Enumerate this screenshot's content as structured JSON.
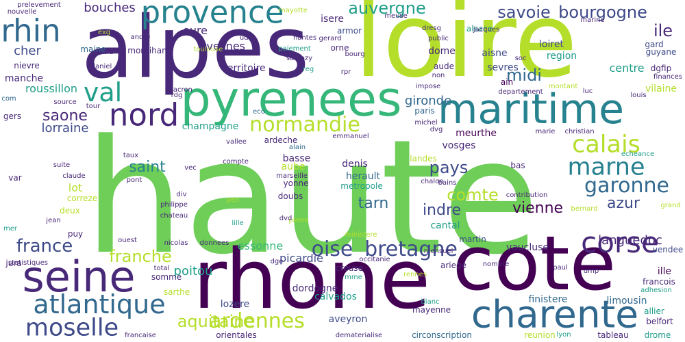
{
  "palette": {
    "c0": "#440154",
    "c1": "#482878",
    "c2": "#3e4a89",
    "c3": "#31688e",
    "c4": "#26828e",
    "c5": "#1f9e89",
    "c6": "#35b779",
    "c7": "#6ece58",
    "c8": "#b5de2b",
    "c9": "#fde725"
  },
  "words": [
    {
      "text": "haute",
      "c": "c7"
    },
    {
      "text": "loire",
      "c": "c8"
    },
    {
      "text": "alpes",
      "c": "c1"
    },
    {
      "text": "rhone",
      "c": "c0"
    },
    {
      "text": "cote",
      "c": "c0"
    },
    {
      "text": "maritime",
      "c": "c4"
    },
    {
      "text": "pyrenees",
      "c": "c6"
    },
    {
      "text": "seine",
      "c": "c1"
    },
    {
      "text": "charente",
      "c": "c3"
    },
    {
      "text": "provence",
      "c": "c4"
    },
    {
      "text": "nord",
      "c": "c1"
    },
    {
      "text": "val",
      "c": "c5"
    },
    {
      "text": "rhin",
      "c": "c3"
    },
    {
      "text": "corse",
      "c": "c1"
    },
    {
      "text": "atlantique",
      "c": "c3"
    },
    {
      "text": "moselle",
      "c": "c2"
    },
    {
      "text": "normandie",
      "c": "c8"
    },
    {
      "text": "calais",
      "c": "c8"
    },
    {
      "text": "marne",
      "c": "c4"
    },
    {
      "text": "garonne",
      "c": "c3"
    },
    {
      "text": "ardennes",
      "c": "c8"
    },
    {
      "text": "savoie",
      "c": "c2"
    },
    {
      "text": "bourgogne",
      "c": "c2"
    },
    {
      "text": "auvergne",
      "c": "c5"
    },
    {
      "text": "aquitaine",
      "c": "c8"
    },
    {
      "text": "oise",
      "c": "c2"
    },
    {
      "text": "bretagne",
      "c": "c2"
    },
    {
      "text": "france",
      "c": "c2"
    },
    {
      "text": "franche",
      "c": "c8"
    },
    {
      "text": "comte",
      "c": "c8"
    },
    {
      "text": "pays",
      "c": "c2"
    },
    {
      "text": "saint",
      "c": "c4"
    },
    {
      "text": "indre",
      "c": "c2"
    },
    {
      "text": "vienne",
      "c": "c0"
    },
    {
      "text": "azur",
      "c": "c2"
    },
    {
      "text": "tarn",
      "c": "c3"
    },
    {
      "text": "midi",
      "c": "c3"
    },
    {
      "text": "ile",
      "c": "c1"
    },
    {
      "text": "languedoc",
      "c": "c1"
    },
    {
      "text": "saone",
      "c": "c1"
    },
    {
      "text": "lorraine",
      "c": "c2"
    },
    {
      "text": "bouches",
      "c": "c1"
    },
    {
      "text": "eure",
      "c": "c1"
    },
    {
      "text": "yvelines",
      "c": "c1"
    },
    {
      "text": "isere",
      "c": "c1"
    },
    {
      "text": "cher",
      "c": "c2"
    },
    {
      "text": "roussillon",
      "c": "c5"
    },
    {
      "text": "gironde",
      "c": "c3"
    },
    {
      "text": "centre",
      "c": "c5"
    },
    {
      "text": "poitou",
      "c": "c5"
    },
    {
      "text": "essonne",
      "c": "c6"
    },
    {
      "text": "picardie",
      "c": "c2"
    },
    {
      "text": "vaucluse",
      "c": "c1"
    },
    {
      "text": "limousin",
      "c": "c3"
    },
    {
      "text": "finistere",
      "c": "c3"
    },
    {
      "text": "lot",
      "c": "c8"
    },
    {
      "text": "calvados",
      "c": "c5"
    },
    {
      "text": "aveyron",
      "c": "c2"
    },
    {
      "text": "lozere",
      "c": "c2"
    },
    {
      "text": "herault",
      "c": "c3"
    },
    {
      "text": "dordogne",
      "c": "c1"
    },
    {
      "text": "cantal",
      "c": "c5"
    },
    {
      "text": "meurthe",
      "c": "c0"
    },
    {
      "text": "vosges",
      "c": "c1"
    },
    {
      "text": "champagne",
      "c": "c5"
    },
    {
      "text": "territoire",
      "c": "c1"
    },
    {
      "text": "manche",
      "c": "c1"
    },
    {
      "text": "gard",
      "c": "c2"
    },
    {
      "text": "guyane",
      "c": "c2"
    },
    {
      "text": "region",
      "c": "c5"
    },
    {
      "text": "loiret",
      "c": "c2"
    },
    {
      "text": "aisne",
      "c": "c2"
    },
    {
      "text": "sevres",
      "c": "c2"
    },
    {
      "text": "dome",
      "c": "c1"
    },
    {
      "text": "aude",
      "c": "c1"
    },
    {
      "text": "orne",
      "c": "c1"
    },
    {
      "text": "armor",
      "c": "c2"
    },
    {
      "text": "alsace",
      "c": "c5"
    },
    {
      "text": "morbihan",
      "c": "c1"
    },
    {
      "text": "sud",
      "c": "c1"
    },
    {
      "text": "maine",
      "c": "c3"
    },
    {
      "text": "nievre",
      "c": "c1"
    },
    {
      "text": "dgfip",
      "c": "c1"
    },
    {
      "text": "vilaine",
      "c": "c8"
    },
    {
      "text": "ardeche",
      "c": "c1"
    },
    {
      "text": "basse",
      "c": "c1"
    },
    {
      "text": "aube",
      "c": "c8"
    },
    {
      "text": "yonne",
      "c": "c1"
    },
    {
      "text": "doubs",
      "c": "c1"
    },
    {
      "text": "metropole",
      "c": "c5"
    },
    {
      "text": "denis",
      "c": "c1"
    },
    {
      "text": "landes",
      "c": "c8"
    },
    {
      "text": "paris",
      "c": "c3"
    },
    {
      "text": "bas",
      "c": "c1"
    },
    {
      "text": "ain",
      "c": "c0"
    },
    {
      "text": "var",
      "c": "c1"
    },
    {
      "text": "correze",
      "c": "c8"
    },
    {
      "text": "deux",
      "c": "c8"
    },
    {
      "text": "puy",
      "c": "c1"
    },
    {
      "text": "jura",
      "c": "c1"
    },
    {
      "text": "gers",
      "c": "c1"
    },
    {
      "text": "martin",
      "c": "c2"
    },
    {
      "text": "ariege",
      "c": "c1"
    },
    {
      "text": "vendee",
      "c": "c2"
    },
    {
      "text": "ille",
      "c": "c0"
    },
    {
      "text": "sarthe",
      "c": "c8"
    },
    {
      "text": "somme",
      "c": "c1"
    },
    {
      "text": "creuse",
      "c": "c1"
    },
    {
      "text": "allier",
      "c": "c5"
    },
    {
      "text": "belfort",
      "c": "c1"
    },
    {
      "text": "drome",
      "c": "c5"
    },
    {
      "text": "mayenne",
      "c": "c1"
    },
    {
      "text": "orientales",
      "c": "c1"
    },
    {
      "text": "reunion",
      "c": "c8"
    },
    {
      "text": "circonscription",
      "c": "c3"
    },
    {
      "text": "tableau",
      "c": "c1"
    },
    {
      "text": "francois",
      "c": "c1"
    },
    {
      "text": "finances",
      "c": "c1"
    },
    {
      "text": "nouvelle",
      "c": "c1"
    },
    {
      "text": "prelevement",
      "c": "c1"
    },
    {
      "text": "mayotte",
      "c": "c8"
    },
    {
      "text": "meuse",
      "c": "c1"
    },
    {
      "text": "dresg",
      "c": "c1"
    },
    {
      "text": "jacques",
      "c": "c1"
    },
    {
      "text": "nantes",
      "c": "c1"
    },
    {
      "text": "gerard",
      "c": "c1"
    },
    {
      "text": "bourg",
      "c": "c1"
    },
    {
      "text": "public",
      "c": "c1"
    },
    {
      "text": "non",
      "c": "c1"
    },
    {
      "text": "soc",
      "c": "c1"
    },
    {
      "text": "marine",
      "c": "c1"
    },
    {
      "text": "andre",
      "c": "c1"
    },
    {
      "text": "exg",
      "c": "c8"
    },
    {
      "text": "toulouse",
      "c": "c8"
    },
    {
      "text": "udf",
      "c": "c1"
    },
    {
      "text": "paiement",
      "c": "c5"
    },
    {
      "text": "sarkozy",
      "c": "c1"
    },
    {
      "text": "reg",
      "c": "c5"
    },
    {
      "text": "rpr",
      "c": "c1"
    },
    {
      "text": "daniel",
      "c": "c1"
    },
    {
      "text": "macron",
      "c": "c1"
    },
    {
      "text": "rdg",
      "c": "c1"
    },
    {
      "text": "tour",
      "c": "c1"
    },
    {
      "text": "source",
      "c": "c1"
    },
    {
      "text": "com",
      "c": "c3"
    },
    {
      "text": "impose",
      "c": "c1"
    },
    {
      "text": "departement",
      "c": "c1"
    },
    {
      "text": "montant",
      "c": "c8"
    },
    {
      "text": "luc",
      "c": "c1"
    },
    {
      "text": "louis",
      "c": "c1"
    },
    {
      "text": "eco",
      "c": "c3"
    },
    {
      "text": "michel",
      "c": "c1"
    },
    {
      "text": "dvg",
      "c": "c1"
    },
    {
      "text": "emmanuel",
      "c": "c1"
    },
    {
      "text": "alain",
      "c": "c3"
    },
    {
      "text": "vallee",
      "c": "c1"
    },
    {
      "text": "marie",
      "c": "c1"
    },
    {
      "text": "christian",
      "c": "c1"
    },
    {
      "text": "echeance",
      "c": "c5"
    },
    {
      "text": "taux",
      "c": "c1"
    },
    {
      "text": "suite",
      "c": "c1"
    },
    {
      "text": "compte",
      "c": "c1"
    },
    {
      "text": "vec",
      "c": "c1"
    },
    {
      "text": "claude",
      "c": "c1"
    },
    {
      "text": "pont",
      "c": "c1"
    },
    {
      "text": "marseille",
      "c": "c1"
    },
    {
      "text": "chalon",
      "c": "c1"
    },
    {
      "text": "bains",
      "c": "c1"
    },
    {
      "text": "div",
      "c": "c1"
    },
    {
      "text": "philippe",
      "c": "c1"
    },
    {
      "text": "chateau",
      "c": "c1"
    },
    {
      "text": "contribution",
      "c": "c1"
    },
    {
      "text": "pen",
      "c": "c8"
    },
    {
      "text": "pierre",
      "c": "c8"
    },
    {
      "text": "bernard",
      "c": "c8"
    },
    {
      "text": "grand",
      "c": "c8"
    },
    {
      "text": "mer",
      "c": "c5"
    },
    {
      "text": "jean",
      "c": "c1"
    },
    {
      "text": "lille",
      "c": "c5"
    },
    {
      "text": "dvd",
      "c": "c1"
    },
    {
      "text": "ministere",
      "c": "c8"
    },
    {
      "text": "ouest",
      "c": "c1"
    },
    {
      "text": "nicolas",
      "c": "c1"
    },
    {
      "text": "donnees",
      "c": "c1"
    },
    {
      "text": "statistiques",
      "c": "c1"
    },
    {
      "text": "dge",
      "c": "c1"
    },
    {
      "text": "occitanie",
      "c": "c1"
    },
    {
      "text": "mensuel",
      "c": "c1"
    },
    {
      "text": "nombre",
      "c": "c1"
    },
    {
      "text": "paul",
      "c": "c1"
    },
    {
      "text": "ump",
      "c": "c1"
    },
    {
      "text": "adhesion",
      "c": "c5"
    },
    {
      "text": "total",
      "c": "c1"
    },
    {
      "text": "mme",
      "c": "c5"
    },
    {
      "text": "rennes",
      "c": "c8"
    },
    {
      "text": "blanc",
      "c": "c5"
    },
    {
      "text": "francaise",
      "c": "c1"
    },
    {
      "text": "dematerialise",
      "c": "c1"
    },
    {
      "text": "lyon",
      "c": "c5"
    }
  ]
}
